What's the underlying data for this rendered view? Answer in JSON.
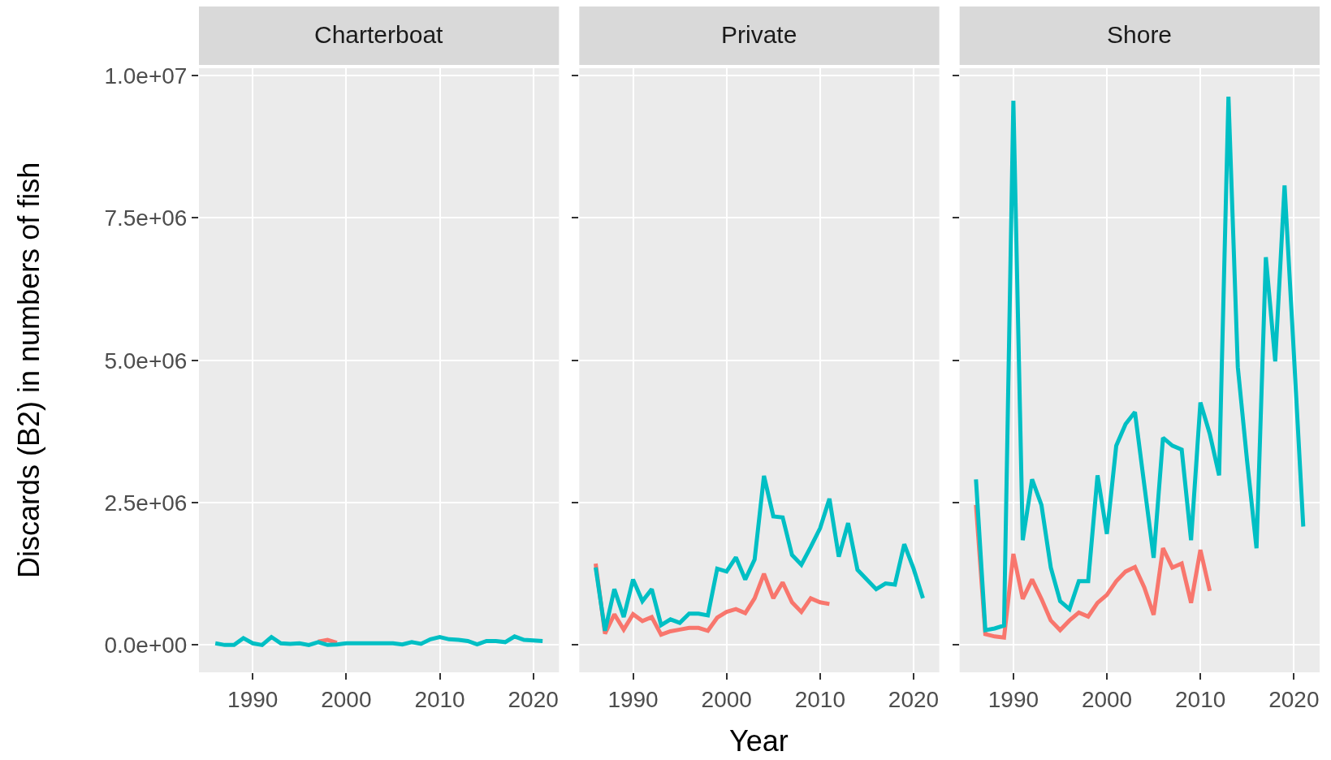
{
  "chart_data": [
    {
      "type": "line",
      "title": "Charterboat",
      "ylabel": "Discards (B2) in numbers of fish",
      "grid": true,
      "xlim": [
        1984.25,
        2022.75
      ],
      "xticks": [
        1990,
        2000,
        2010,
        2020
      ],
      "ylim": [
        -480000,
        10130000
      ],
      "yticks": [
        {
          "value": 0,
          "label": "0.0e+00"
        },
        {
          "value": 2500000,
          "label": "2.5e+06"
        },
        {
          "value": 5000000,
          "label": "5.0e+06"
        },
        {
          "value": 7500000,
          "label": "7.5e+06"
        },
        {
          "value": 10000000,
          "label": "1.0e+07"
        }
      ],
      "series": [
        {
          "color": "#f8766d",
          "x": [
            1997,
            1998,
            1999
          ],
          "values": [
            60000,
            90000,
            40000
          ]
        },
        {
          "color": "#00bfc4",
          "x": [
            1986,
            1987,
            1988,
            1989,
            1990,
            1991,
            1992,
            1993,
            1994,
            1995,
            1996,
            1997,
            1998,
            1999,
            2000,
            2001,
            2002,
            2003,
            2004,
            2005,
            2006,
            2007,
            2008,
            2009,
            2010,
            2011,
            2012,
            2013,
            2014,
            2015,
            2016,
            2017,
            2018,
            2019,
            2020,
            2021
          ],
          "values": [
            30000,
            0,
            0,
            120000,
            30000,
            0,
            140000,
            30000,
            20000,
            30000,
            0,
            50000,
            0,
            10000,
            30000,
            30000,
            30000,
            30000,
            30000,
            30000,
            10000,
            50000,
            20000,
            100000,
            140000,
            100000,
            90000,
            70000,
            10000,
            70000,
            70000,
            50000,
            150000,
            90000,
            80000,
            70000
          ]
        }
      ]
    },
    {
      "type": "line",
      "title": "Private",
      "xlabel": "Year",
      "grid": true,
      "tick_labels": "x",
      "xlim": [
        1984.25,
        2022.75
      ],
      "xticks": [
        1990,
        2000,
        2010,
        2020
      ],
      "ylim": [
        -480000,
        10130000
      ],
      "yticks": [
        {
          "value": 0,
          "label": null
        },
        {
          "value": 2500000,
          "label": null
        },
        {
          "value": 5000000,
          "label": null
        },
        {
          "value": 7500000,
          "label": null
        },
        {
          "value": 10000000,
          "label": null
        }
      ],
      "series": [
        {
          "color": "#f8766d",
          "x": [
            1986,
            1987,
            1988,
            1989,
            1990,
            1991,
            1992,
            1993,
            1994,
            1995,
            1996,
            1997,
            1998,
            1999,
            2000,
            2001,
            2002,
            2003,
            2004,
            2005,
            2006,
            2007,
            2008,
            2009,
            2010,
            2011
          ],
          "values": [
            1430000,
            200000,
            540000,
            270000,
            540000,
            420000,
            490000,
            180000,
            240000,
            270000,
            300000,
            300000,
            250000,
            480000,
            580000,
            630000,
            560000,
            820000,
            1250000,
            820000,
            1100000,
            750000,
            580000,
            820000,
            750000,
            720000
          ]
        },
        {
          "color": "#00bfc4",
          "x": [
            1986,
            1987,
            1988,
            1989,
            1990,
            1991,
            1992,
            1993,
            1994,
            1995,
            1996,
            1997,
            1998,
            1999,
            2000,
            2001,
            2002,
            2003,
            2004,
            2005,
            2006,
            2007,
            2008,
            2009,
            2010,
            2011,
            2012,
            2013,
            2014,
            2015,
            2016,
            2017,
            2018,
            2019,
            2020,
            2021
          ],
          "values": [
            1360000,
            250000,
            980000,
            490000,
            1150000,
            770000,
            980000,
            350000,
            450000,
            390000,
            550000,
            550000,
            520000,
            1340000,
            1290000,
            1540000,
            1150000,
            1500000,
            2970000,
            2260000,
            2240000,
            1580000,
            1410000,
            1720000,
            2050000,
            2570000,
            1550000,
            2140000,
            1320000,
            1150000,
            980000,
            1080000,
            1060000,
            1770000,
            1340000,
            820000
          ]
        }
      ]
    },
    {
      "type": "line",
      "title": "Shore",
      "grid": true,
      "tick_labels": "x",
      "xlim": [
        1984.25,
        2022.75
      ],
      "xticks": [
        1990,
        2000,
        2010,
        2020
      ],
      "ylim": [
        -480000,
        10130000
      ],
      "yticks": [
        {
          "value": 0,
          "label": null
        },
        {
          "value": 2500000,
          "label": null
        },
        {
          "value": 5000000,
          "label": null
        },
        {
          "value": 7500000,
          "label": null
        },
        {
          "value": 10000000,
          "label": null
        }
      ],
      "series": [
        {
          "color": "#f8766d",
          "x": [
            1986,
            1987,
            1988,
            1989,
            1990,
            1991,
            1992,
            1993,
            1994,
            1995,
            1996,
            1997,
            1998,
            1999,
            2000,
            2001,
            2002,
            2003,
            2004,
            2005,
            2006,
            2007,
            2008,
            2009,
            2010,
            2011
          ],
          "values": [
            2460000,
            190000,
            150000,
            130000,
            1600000,
            810000,
            1150000,
            810000,
            430000,
            260000,
            430000,
            570000,
            500000,
            740000,
            880000,
            1120000,
            1290000,
            1370000,
            1010000,
            530000,
            1700000,
            1360000,
            1430000,
            740000,
            1670000,
            950000
          ]
        },
        {
          "color": "#00bfc4",
          "x": [
            1986,
            1987,
            1988,
            1989,
            1990,
            1991,
            1992,
            1993,
            1994,
            1995,
            1996,
            1997,
            1998,
            1999,
            2000,
            2001,
            2002,
            2003,
            2004,
            2005,
            2006,
            2007,
            2008,
            2009,
            2010,
            2011,
            2012,
            2013,
            2014,
            2015,
            2016,
            2017,
            2018,
            2019,
            2020,
            2021
          ],
          "values": [
            2910000,
            260000,
            290000,
            340000,
            9560000,
            1840000,
            2910000,
            2460000,
            1360000,
            770000,
            630000,
            1120000,
            1120000,
            2980000,
            1950000,
            3500000,
            3880000,
            4090000,
            2810000,
            1530000,
            3640000,
            3500000,
            3430000,
            1840000,
            4260000,
            3710000,
            2980000,
            9630000,
            4880000,
            3220000,
            1700000,
            6810000,
            4980000,
            8070000,
            5100000,
            2080000
          ]
        }
      ]
    }
  ]
}
